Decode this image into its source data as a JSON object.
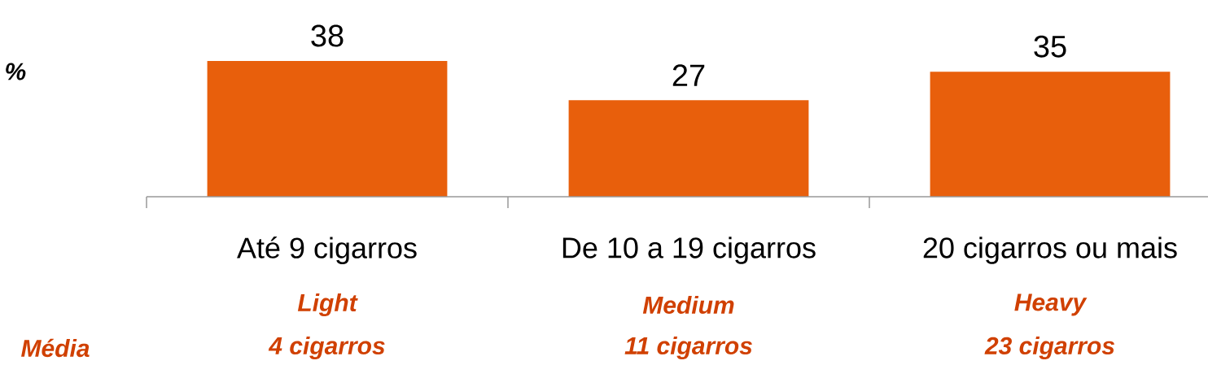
{
  "chart_data": {
    "type": "bar",
    "categories": [
      "Até 9 cigarros",
      "De 10 a 19 cigarros",
      "20 cigarros ou mais"
    ],
    "values": [
      38,
      27,
      35
    ],
    "color": "#e85f0c",
    "data_labels": true,
    "annotations": [
      "%",
      "Média",
      "Light",
      "4 cigarros",
      "Medium",
      "11 cigarros",
      "Heavy",
      "23 cigarros"
    ]
  }
}
